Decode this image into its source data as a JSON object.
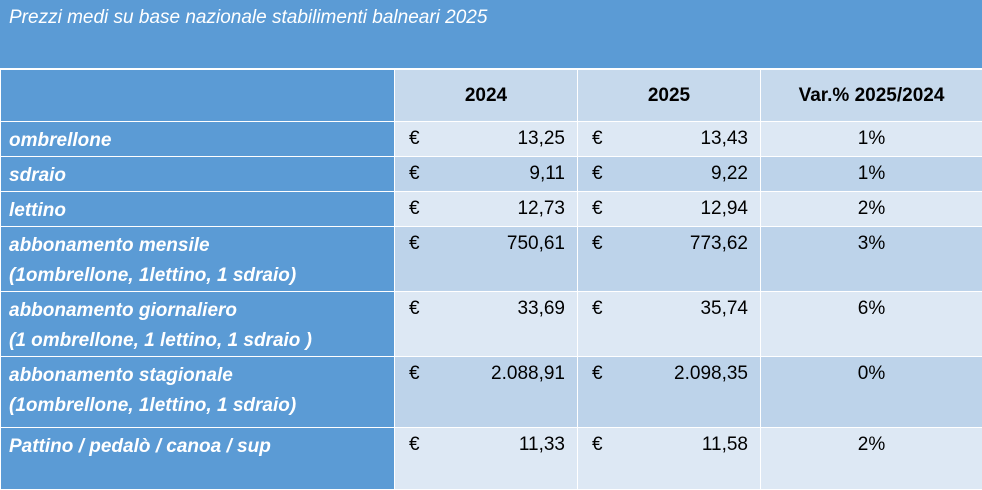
{
  "title": "Prezzi medi su base nazionale stabilimenti balneari 2025",
  "columns": [
    "2024",
    "2025",
    "Var.% 2025/2024"
  ],
  "currency": "€",
  "rows": [
    {
      "label1": "ombrellone",
      "label2": "",
      "v2024": "13,25",
      "v2025": "13,43",
      "var": "1%"
    },
    {
      "label1": "sdraio",
      "label2": "",
      "v2024": "9,11",
      "v2025": "9,22",
      "var": "1%"
    },
    {
      "label1": "lettino",
      "label2": "",
      "v2024": "12,73",
      "v2025": "12,94",
      "var": "2%"
    },
    {
      "label1": "abbonamento mensile",
      "label2": "(1ombrellone, 1lettino, 1 sdraio)",
      "v2024": "750,61",
      "v2025": "773,62",
      "var": "3%"
    },
    {
      "label1": "abbonamento giornaliero",
      "label2": "(1 ombrellone, 1 lettino, 1 sdraio )",
      "v2024": "33,69",
      "v2025": "35,74",
      "var": "6%"
    },
    {
      "label1": "abbonamento stagionale",
      "label2": "(1ombrellone, 1lettino, 1 sdraio)",
      "v2024": "2.088,91",
      "v2025": "2.098,35",
      "var": "0%"
    },
    {
      "label1": "Pattino / pedalò  / canoa / sup",
      "label2": "",
      "v2024": "11,33",
      "v2025": "11,58",
      "var": "2%"
    }
  ]
}
